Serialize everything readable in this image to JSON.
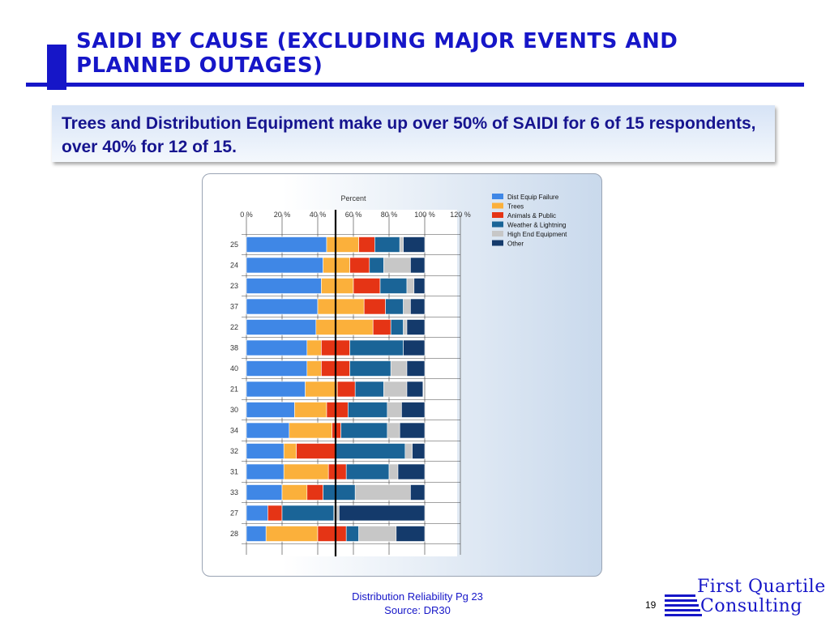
{
  "slide": {
    "title": "SAIDI by Cause (excluding Major Events and Planned Outages)",
    "callout": "Trees and Distribution Equipment make up over 50% of SAIDI for 6 of 15 respondents, over 40% for 12 of 15.",
    "footer_line1": "Distribution Reliability Pg 23",
    "footer_line2": "Source: DR30",
    "page_number": "19",
    "logo_line1": "First Quartile",
    "logo_line2": "Consulting"
  },
  "chart_data": {
    "type": "bar",
    "orientation": "horizontal",
    "stacked": true,
    "xlabel": "Percent",
    "x_ticks": [
      "0 %",
      "20 %",
      "40 %",
      "60 %",
      "80 %",
      "100 %",
      "120 %"
    ],
    "xlim": [
      0,
      120
    ],
    "reference_line": 50,
    "grid": true,
    "legend_position": "top-right",
    "categories": [
      "25",
      "24",
      "23",
      "37",
      "22",
      "38",
      "40",
      "21",
      "30",
      "34",
      "32",
      "31",
      "33",
      "27",
      "28"
    ],
    "series": [
      {
        "name": "Dist Equip Failure",
        "color": "#3f87e6",
        "values": [
          45,
          43,
          42,
          40,
          39,
          34,
          34,
          33,
          27,
          24,
          21,
          21,
          20,
          12,
          11
        ]
      },
      {
        "name": "Trees",
        "color": "#fbb03b",
        "values": [
          18,
          15,
          18,
          26,
          32,
          8,
          8,
          18,
          18,
          24,
          7,
          25,
          14,
          0,
          29
        ]
      },
      {
        "name": "Animals & Public",
        "color": "#e53415",
        "values": [
          9,
          11,
          15,
          12,
          10,
          16,
          16,
          10,
          12,
          5,
          22,
          10,
          9,
          8,
          16
        ]
      },
      {
        "name": "Weather & Lightning",
        "color": "#1a6497",
        "values": [
          14,
          8,
          15,
          10,
          7,
          30,
          23,
          16,
          22,
          26,
          39,
          24,
          18,
          29,
          7
        ]
      },
      {
        "name": "High End Equipment",
        "color": "#c7c7c7",
        "values": [
          2,
          15,
          4,
          4,
          2,
          0,
          9,
          13,
          8,
          7,
          4,
          5,
          31,
          3,
          21
        ]
      },
      {
        "name": "Other",
        "color": "#143a6b",
        "values": [
          12,
          8,
          6,
          8,
          10,
          12,
          10,
          9,
          13,
          14,
          7,
          15,
          8,
          48,
          16
        ]
      }
    ]
  }
}
